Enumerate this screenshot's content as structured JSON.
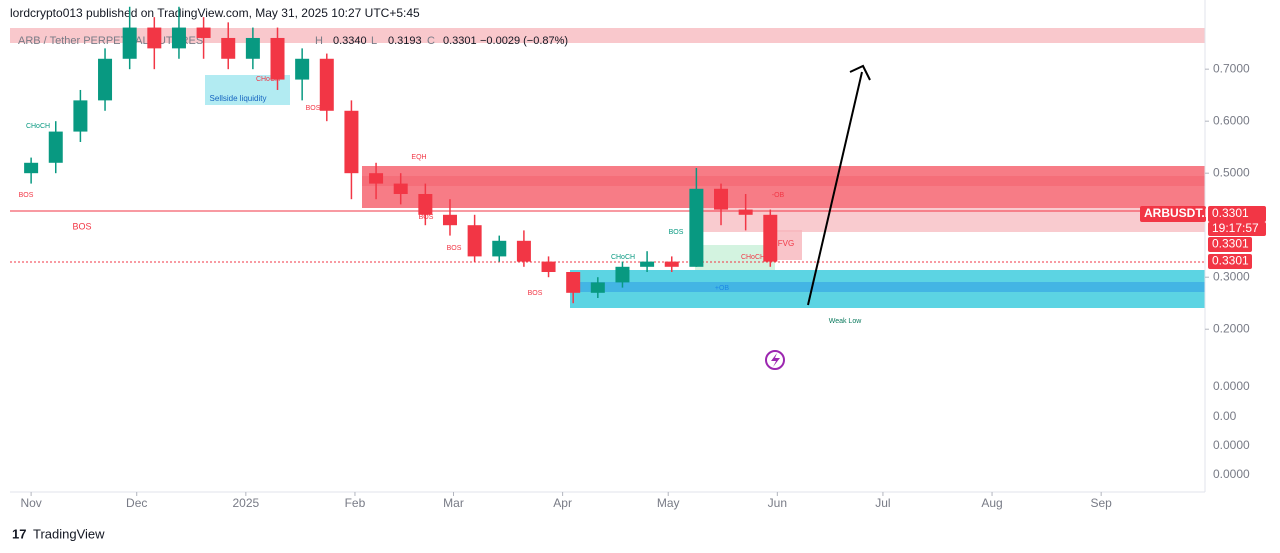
{
  "header": {
    "publisher": "lordcrypto013 published on TradingView.com, May 31, 2025 10:27 UTC+5:45"
  },
  "chart_data": {
    "type": "candlestick",
    "legend_text": [
      "ARB / Tether PERPETUAL FUTURES",
      "H",
      "0.3340",
      "L",
      "0.3193",
      "C",
      "0.3301",
      "−0.0029 (−0.87%)"
    ],
    "x": [
      0,
      7,
      14,
      21,
      28,
      35,
      42,
      49,
      56,
      63,
      70,
      77,
      84,
      91,
      98,
      105,
      112,
      119,
      126,
      133,
      140,
      147,
      154,
      161,
      168,
      175,
      182,
      189,
      196,
      203,
      210
    ],
    "open": [
      0.5,
      0.52,
      0.58,
      0.64,
      0.72,
      0.78,
      0.74,
      0.78,
      0.76,
      0.72,
      0.76,
      0.68,
      0.72,
      0.62,
      0.5,
      0.48,
      0.46,
      0.42,
      0.4,
      0.34,
      0.37,
      0.33,
      0.31,
      0.27,
      0.29,
      0.32,
      0.33,
      0.32,
      0.47,
      0.43,
      0.42
    ],
    "high": [
      0.53,
      0.6,
      0.66,
      0.74,
      0.82,
      0.8,
      0.82,
      0.8,
      0.79,
      0.78,
      0.78,
      0.74,
      0.73,
      0.64,
      0.52,
      0.5,
      0.48,
      0.45,
      0.42,
      0.38,
      0.39,
      0.34,
      0.31,
      0.3,
      0.33,
      0.35,
      0.34,
      0.51,
      0.48,
      0.46,
      0.43
    ],
    "low": [
      0.48,
      0.5,
      0.56,
      0.62,
      0.7,
      0.7,
      0.72,
      0.72,
      0.7,
      0.7,
      0.66,
      0.64,
      0.6,
      0.45,
      0.45,
      0.44,
      0.4,
      0.38,
      0.33,
      0.33,
      0.32,
      0.3,
      0.25,
      0.26,
      0.28,
      0.31,
      0.31,
      0.32,
      0.4,
      0.39,
      0.32
    ],
    "close": [
      0.52,
      0.58,
      0.64,
      0.72,
      0.78,
      0.74,
      0.78,
      0.76,
      0.72,
      0.76,
      0.68,
      0.72,
      0.62,
      0.5,
      0.48,
      0.46,
      0.42,
      0.4,
      0.34,
      0.37,
      0.33,
      0.31,
      0.27,
      0.29,
      0.32,
      0.33,
      0.32,
      0.47,
      0.43,
      0.42,
      0.33
    ],
    "up_color": "#089981",
    "down_color": "#f23645",
    "xlim": [
      -6,
      333.5
    ],
    "xticks": [
      {
        "value": 0,
        "label": "Nov"
      },
      {
        "value": 30,
        "label": "Dec"
      },
      {
        "value": 61,
        "label": "2025"
      },
      {
        "value": 92,
        "label": "Feb"
      },
      {
        "value": 120,
        "label": "Mar"
      },
      {
        "value": 151,
        "label": "Apr"
      },
      {
        "value": 181,
        "label": "May"
      },
      {
        "value": 212,
        "label": "Jun"
      },
      {
        "value": 242,
        "label": "Jul"
      },
      {
        "value": 273,
        "label": "Aug"
      },
      {
        "value": 304,
        "label": "Sep"
      }
    ],
    "ylim": [
      -0.113,
      0.833
    ],
    "yticks": [
      {
        "value": 0.7,
        "label": "0.7000"
      },
      {
        "value": 0.6,
        "label": "0.6000"
      },
      {
        "value": 0.5,
        "label": "0.5000"
      },
      {
        "value": 0.3,
        "label": "0.3000"
      },
      {
        "value": 0.2,
        "label": "0.2000"
      }
    ],
    "lower_scale_labels": [
      "0.0000",
      "0.00",
      "0.0000",
      "0.0000"
    ],
    "price_tags": {
      "symbol": "ARBUSDT.P",
      "price": "0.3301",
      "countdown": "19:17:57",
      "price_2": "0.3301",
      "price_3": "0.3301"
    },
    "annotations": [
      "CHoCH",
      "BOS",
      "BOS",
      "Sellside liquidity",
      "CHoCH",
      "BOS",
      "EQH",
      "BOS",
      "BOS",
      "BOS",
      "CHoCH",
      "BOS",
      "-OB",
      "FVG",
      "CHoCH",
      "+OB",
      "Weak Low"
    ]
  },
  "footer": {
    "brand": "TradingView"
  }
}
